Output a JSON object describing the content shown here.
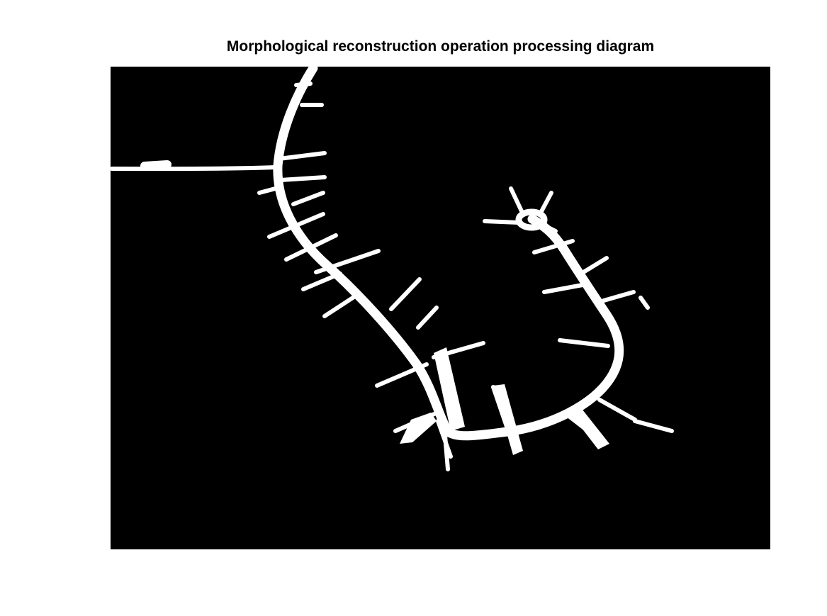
{
  "figure": {
    "title": "Morphological reconstruction operation processing diagram"
  },
  "image": {
    "content": "binary mask",
    "background_color": "#000000",
    "foreground_color": "#ffffff"
  }
}
